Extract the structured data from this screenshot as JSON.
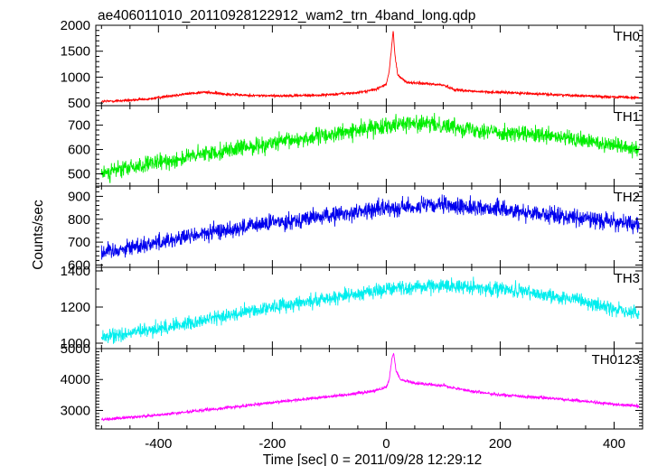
{
  "chart_data": {
    "type": "line",
    "title": "ae406011010_20110928122912_wam2_trn_4band_long.qdp",
    "xlabel": "Time [sec] 0 = 2011/09/28 12:29:12",
    "ylabel": "Counts/sec",
    "xlim": [
      -510,
      450
    ],
    "xticks": [
      -400,
      -200,
      0,
      200,
      400
    ],
    "grid": false,
    "panels": [
      {
        "name": "TH0",
        "color": "#ff0000",
        "ylim": [
          450,
          2000
        ],
        "yticks": [
          500,
          1000,
          1500,
          2000
        ],
        "noise": 18,
        "trend": [
          [
            -500,
            530
          ],
          [
            -420,
            570
          ],
          [
            -380,
            640
          ],
          [
            -340,
            690
          ],
          [
            -320,
            710
          ],
          [
            -300,
            690
          ],
          [
            -250,
            650
          ],
          [
            -200,
            640
          ],
          [
            -120,
            650
          ],
          [
            -50,
            700
          ],
          [
            -20,
            760
          ],
          [
            0,
            860
          ],
          [
            5,
            1100
          ],
          [
            10,
            1650
          ],
          [
            12,
            1900
          ],
          [
            15,
            1450
          ],
          [
            20,
            1050
          ],
          [
            35,
            900
          ],
          [
            60,
            880
          ],
          [
            100,
            850
          ],
          [
            120,
            760
          ],
          [
            160,
            720
          ],
          [
            220,
            700
          ],
          [
            300,
            660
          ],
          [
            350,
            640
          ],
          [
            440,
            600
          ]
        ]
      },
      {
        "name": "TH1",
        "color": "#00ee00",
        "ylim": [
          450,
          780
        ],
        "yticks": [
          500,
          600,
          700
        ],
        "noise": 24,
        "trend": [
          [
            -500,
            505
          ],
          [
            -400,
            545
          ],
          [
            -300,
            590
          ],
          [
            -200,
            625
          ],
          [
            -100,
            660
          ],
          [
            -20,
            690
          ],
          [
            20,
            710
          ],
          [
            100,
            700
          ],
          [
            200,
            670
          ],
          [
            300,
            650
          ],
          [
            400,
            620
          ],
          [
            440,
            605
          ]
        ]
      },
      {
        "name": "TH2",
        "color": "#0000ee",
        "ylim": [
          590,
          945
        ],
        "yticks": [
          600,
          700,
          800,
          900
        ],
        "noise": 26,
        "trend": [
          [
            -500,
            655
          ],
          [
            -400,
            700
          ],
          [
            -300,
            745
          ],
          [
            -200,
            785
          ],
          [
            -100,
            815
          ],
          [
            0,
            850
          ],
          [
            100,
            860
          ],
          [
            200,
            845
          ],
          [
            300,
            815
          ],
          [
            400,
            790
          ],
          [
            440,
            775
          ]
        ]
      },
      {
        "name": "TH3",
        "color": "#00eeee",
        "ylim": [
          970,
          1420
        ],
        "yticks": [
          1000,
          1200,
          1400
        ],
        "noise": 28,
        "trend": [
          [
            -500,
            1030
          ],
          [
            -400,
            1080
          ],
          [
            -300,
            1140
          ],
          [
            -200,
            1200
          ],
          [
            -100,
            1250
          ],
          [
            0,
            1300
          ],
          [
            100,
            1320
          ],
          [
            200,
            1300
          ],
          [
            300,
            1260
          ],
          [
            400,
            1190
          ],
          [
            440,
            1160
          ]
        ]
      },
      {
        "name": "TH0123",
        "color": "#ff00ff",
        "ylim": [
          2400,
          5000
        ],
        "yticks": [
          3000,
          4000,
          5000
        ],
        "noise": 35,
        "trend": [
          [
            -500,
            2700
          ],
          [
            -400,
            2850
          ],
          [
            -300,
            3050
          ],
          [
            -200,
            3250
          ],
          [
            -100,
            3450
          ],
          [
            -30,
            3600
          ],
          [
            0,
            3750
          ],
          [
            5,
            4000
          ],
          [
            10,
            4700
          ],
          [
            13,
            4850
          ],
          [
            17,
            4300
          ],
          [
            25,
            4000
          ],
          [
            50,
            3880
          ],
          [
            100,
            3800
          ],
          [
            150,
            3620
          ],
          [
            200,
            3500
          ],
          [
            300,
            3380
          ],
          [
            400,
            3200
          ],
          [
            440,
            3150
          ]
        ]
      }
    ]
  }
}
